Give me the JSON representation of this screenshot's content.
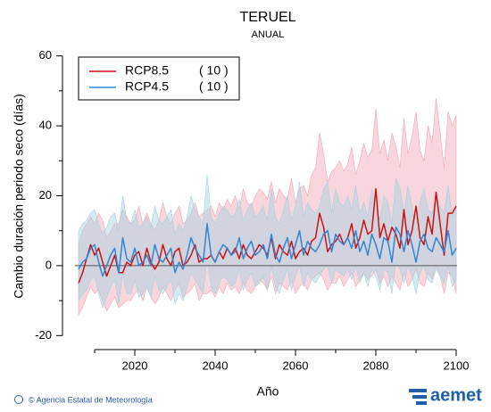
{
  "chart_data": {
    "type": "line",
    "title": "TERUEL",
    "subtitle": "ANUAL",
    "x_label": "Año",
    "y_label": "Cambio duración periodo seco (días)",
    "xlim": [
      2002,
      2102
    ],
    "ylim": [
      -24,
      64
    ],
    "xticks": [
      2020,
      2040,
      2060,
      2080,
      2100
    ],
    "x_minor_ticks": [
      2010,
      2030,
      2050,
      2070,
      2090
    ],
    "yticks": [
      -20,
      0,
      20,
      40,
      60
    ],
    "y_minor_ticks": [
      -10,
      10,
      30,
      50
    ],
    "hline": 0,
    "legend": "upper left",
    "x": [
      2006,
      2007,
      2008,
      2009,
      2010,
      2011,
      2012,
      2013,
      2014,
      2015,
      2016,
      2017,
      2018,
      2019,
      2020,
      2021,
      2022,
      2023,
      2024,
      2025,
      2026,
      2027,
      2028,
      2029,
      2030,
      2031,
      2032,
      2033,
      2034,
      2035,
      2036,
      2037,
      2038,
      2039,
      2040,
      2041,
      2042,
      2043,
      2044,
      2045,
      2046,
      2047,
      2048,
      2049,
      2050,
      2051,
      2052,
      2053,
      2054,
      2055,
      2056,
      2057,
      2058,
      2059,
      2060,
      2061,
      2062,
      2063,
      2064,
      2065,
      2066,
      2067,
      2068,
      2069,
      2070,
      2071,
      2072,
      2073,
      2074,
      2075,
      2076,
      2077,
      2078,
      2079,
      2080,
      2081,
      2082,
      2083,
      2084,
      2085,
      2086,
      2087,
      2088,
      2089,
      2090,
      2091,
      2092,
      2093,
      2094,
      2095,
      2096,
      2097,
      2098,
      2099,
      2100
    ],
    "series": [
      {
        "name": "RCP8.5",
        "count_label": "( 10 )",
        "color": "#cc1111",
        "band_color": "#f2a5b3",
        "values": [
          -5,
          -2,
          2,
          6,
          3,
          5,
          1,
          -3,
          0,
          3,
          -2,
          -2,
          1,
          0,
          3,
          4,
          0,
          5,
          1,
          -1,
          1,
          6,
          2,
          0,
          4,
          5,
          0,
          1,
          3,
          6,
          1,
          2,
          2,
          3,
          1,
          4,
          2,
          5,
          3,
          5,
          2,
          6,
          3,
          2,
          4,
          6,
          5,
          3,
          8,
          2,
          6,
          4,
          3,
          7,
          2,
          4,
          5,
          3,
          7,
          8,
          15,
          11,
          4,
          6,
          7,
          9,
          6,
          8,
          12,
          5,
          8,
          13,
          9,
          10,
          22,
          8,
          12,
          7,
          11,
          9,
          5,
          16,
          6,
          10,
          17,
          8,
          6,
          14,
          9,
          21,
          12,
          3,
          15,
          15,
          17
        ],
        "band_high": [
          6,
          10,
          12,
          14,
          12,
          15,
          13,
          8,
          10,
          12,
          12,
          16,
          14,
          12,
          13,
          17,
          12,
          15,
          12,
          10,
          13,
          18,
          14,
          12,
          15,
          17,
          12,
          13,
          15,
          18,
          14,
          15,
          16,
          17,
          14,
          18,
          16,
          19,
          17,
          20,
          16,
          22,
          18,
          17,
          20,
          22,
          21,
          19,
          24,
          18,
          22,
          20,
          19,
          25,
          18,
          22,
          23,
          20,
          26,
          28,
          38,
          32,
          24,
          27,
          28,
          30,
          27,
          29,
          34,
          26,
          30,
          35,
          31,
          33,
          45,
          32,
          36,
          30,
          38,
          34,
          28,
          42,
          32,
          37,
          44,
          33,
          30,
          40,
          35,
          48,
          38,
          28,
          44,
          40,
          43
        ],
        "band_low": [
          -14,
          -12,
          -9,
          -6,
          -8,
          -7,
          -10,
          -13,
          -11,
          -9,
          -12,
          -11,
          -10,
          -10,
          -8,
          -7,
          -10,
          -6,
          -9,
          -11,
          -9,
          -6,
          -8,
          -10,
          -7,
          -5,
          -9,
          -8,
          -7,
          -5,
          -10,
          -8,
          -8,
          -7,
          -9,
          -6,
          -8,
          -5,
          -7,
          -6,
          -8,
          -5,
          -7,
          -8,
          -6,
          -4,
          -5,
          -7,
          -3,
          -8,
          -5,
          -6,
          -7,
          -4,
          -8,
          -6,
          -5,
          -7,
          -4,
          -3,
          -2,
          -4,
          -7,
          -5,
          -5,
          -3,
          -6,
          -4,
          -2,
          -6,
          -4,
          -2,
          -4,
          -3,
          -1,
          -5,
          -3,
          -6,
          -3,
          -5,
          -7,
          -2,
          -6,
          -4,
          -1,
          -5,
          -6,
          -2,
          -4,
          0,
          -3,
          -8,
          -2,
          -3,
          -8
        ]
      },
      {
        "name": "RCP4.5",
        "count_label": "( 10 )",
        "color": "#2f86d6",
        "band_color": "#9fd3e0",
        "values": [
          -1,
          1,
          2,
          5,
          6,
          1,
          -3,
          0,
          3,
          5,
          -2,
          8,
          2,
          1,
          5,
          0,
          1,
          3,
          0,
          6,
          2,
          1,
          3,
          5,
          -2,
          1,
          -1,
          3,
          8,
          5,
          3,
          1,
          12,
          3,
          1,
          4,
          6,
          5,
          3,
          4,
          8,
          2,
          5,
          7,
          3,
          4,
          6,
          2,
          9,
          3,
          1,
          5,
          8,
          2,
          6,
          10,
          3,
          7,
          5,
          4,
          6,
          9,
          10,
          4,
          9,
          7,
          6,
          8,
          5,
          10,
          4,
          7,
          3,
          9,
          6,
          2,
          8,
          7,
          1,
          11,
          9,
          4,
          10,
          6,
          1,
          7,
          9,
          5,
          4,
          8,
          6,
          4,
          10,
          3,
          5
        ],
        "band_high": [
          10,
          12,
          13,
          15,
          16,
          12,
          9,
          11,
          14,
          15,
          10,
          20,
          13,
          12,
          16,
          11,
          12,
          14,
          11,
          17,
          13,
          12,
          14,
          16,
          9,
          12,
          10,
          14,
          20,
          16,
          14,
          12,
          26,
          14,
          12,
          15,
          17,
          16,
          14,
          15,
          19,
          13,
          16,
          18,
          14,
          15,
          17,
          13,
          22,
          14,
          12,
          16,
          20,
          13,
          17,
          24,
          14,
          18,
          16,
          15,
          17,
          22,
          24,
          15,
          22,
          18,
          17,
          20,
          16,
          23,
          15,
          18,
          14,
          22,
          17,
          13,
          20,
          18,
          12,
          25,
          22,
          15,
          23,
          17,
          12,
          18,
          22,
          16,
          15,
          20,
          17,
          15,
          23,
          14,
          16
        ],
        "band_low": [
          -10,
          -8,
          -7,
          -4,
          -3,
          -8,
          -12,
          -9,
          -6,
          -4,
          -11,
          -2,
          -8,
          -8,
          -4,
          -9,
          -8,
          -6,
          -9,
          -3,
          -7,
          -8,
          -6,
          -4,
          -11,
          -8,
          -10,
          -6,
          -2,
          -4,
          -6,
          -8,
          2,
          -6,
          -8,
          -5,
          -3,
          -4,
          -6,
          -5,
          -1,
          -7,
          -4,
          -2,
          -6,
          -5,
          -3,
          -7,
          0,
          -6,
          -8,
          -4,
          -1,
          -7,
          -3,
          0,
          -6,
          -2,
          -4,
          -5,
          -3,
          -1,
          0,
          -5,
          -1,
          -2,
          -3,
          -1,
          -4,
          0,
          -5,
          -2,
          -6,
          -1,
          -3,
          -7,
          -1,
          -2,
          -8,
          1,
          -1,
          -5,
          0,
          -3,
          -8,
          -2,
          0,
          -4,
          -5,
          -1,
          -3,
          -5,
          0,
          -6,
          -4
        ]
      }
    ],
    "footer": {
      "credit": "© Agencia Estatal de Meteorología",
      "logo": "aemet"
    }
  }
}
